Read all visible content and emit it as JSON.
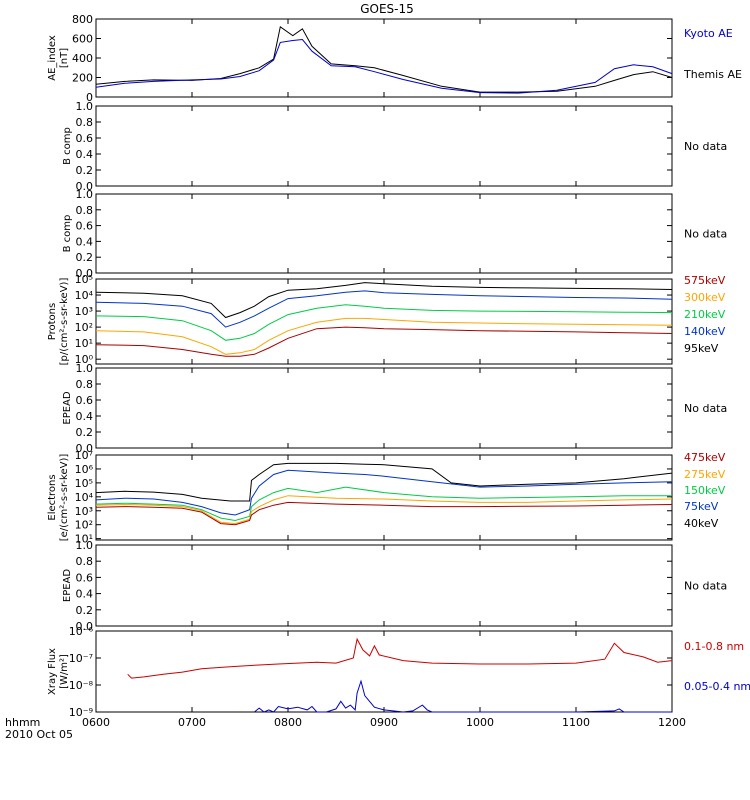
{
  "title": "GOES-15",
  "footer": {
    "time_label": "hhmm",
    "date_label": "2010 Oct 05"
  },
  "x_ticks": [
    "0600",
    "0700",
    "0800",
    "0900",
    "1000",
    "1100",
    "1200"
  ],
  "chart_data": [
    {
      "id": "ae",
      "type": "line",
      "ylabel": [
        "AE_index",
        "[nT]"
      ],
      "xlim": [
        6,
        12
      ],
      "ylim": [
        0,
        800
      ],
      "y_ticks": [
        "0",
        "200",
        "400",
        "600",
        "800"
      ],
      "legend": [
        {
          "text": "Kyoto AE",
          "color": "#0000cc"
        },
        {
          "text": "Themis AE",
          "color": "#000000"
        }
      ],
      "series": [
        {
          "name": "Themis AE",
          "color": "#000000",
          "x": [
            6.0,
            6.3,
            6.6,
            7.0,
            7.3,
            7.5,
            7.7,
            7.85,
            7.92,
            8.05,
            8.15,
            8.25,
            8.45,
            8.7,
            8.9,
            9.2,
            9.6,
            10.0,
            10.4,
            10.8,
            11.2,
            11.4,
            11.6,
            11.8,
            12.0
          ],
          "y": [
            130,
            160,
            175,
            170,
            190,
            240,
            300,
            390,
            720,
            630,
            700,
            520,
            340,
            320,
            300,
            220,
            110,
            50,
            50,
            60,
            110,
            170,
            230,
            260,
            200
          ]
        },
        {
          "name": "Kyoto AE",
          "color": "#0000cc",
          "x": [
            6.0,
            6.3,
            6.6,
            7.0,
            7.3,
            7.5,
            7.7,
            7.85,
            7.92,
            8.05,
            8.15,
            8.25,
            8.45,
            8.7,
            8.9,
            9.2,
            9.6,
            10.0,
            10.4,
            10.8,
            11.2,
            11.4,
            11.6,
            11.8,
            12.0
          ],
          "y": [
            100,
            140,
            160,
            175,
            185,
            210,
            270,
            380,
            560,
            580,
            590,
            470,
            320,
            310,
            260,
            180,
            90,
            45,
            40,
            70,
            150,
            290,
            330,
            310,
            240
          ]
        }
      ]
    },
    {
      "id": "b1",
      "type": "line",
      "ylabel": [
        "B comp"
      ],
      "ylim": [
        0,
        1
      ],
      "y_ticks": [
        "0.0",
        "0.2",
        "0.4",
        "0.6",
        "0.8",
        "1.0"
      ],
      "note": "No data",
      "series": []
    },
    {
      "id": "b2",
      "type": "line",
      "ylabel": [
        "B comp"
      ],
      "ylim": [
        0,
        1
      ],
      "y_ticks": [
        "0.0",
        "0.2",
        "0.4",
        "0.6",
        "0.8",
        "1.0"
      ],
      "note": "No data",
      "series": []
    },
    {
      "id": "protons",
      "type": "line",
      "log": true,
      "ylabel": [
        "Protons",
        "[p/(cm²-s-sr-keV)]"
      ],
      "ylim": [
        0.5,
        100000
      ],
      "y_ticks": [
        "10⁰",
        "10¹",
        "10²",
        "10³",
        "10⁴",
        "10⁵"
      ],
      "legend": [
        {
          "text": "575keV",
          "color": "#aa0000"
        },
        {
          "text": "300keV",
          "color": "#ffa500"
        },
        {
          "text": "210keV",
          "color": "#00cc44"
        },
        {
          "text": "140keV",
          "color": "#0033cc"
        },
        {
          "text": "95keV",
          "color": "#000000"
        }
      ],
      "series": [
        {
          "name": "95keV",
          "color": "#000000",
          "x": [
            6.0,
            6.5,
            6.9,
            7.2,
            7.35,
            7.5,
            7.65,
            7.8,
            8.0,
            8.3,
            8.6,
            8.8,
            9.0,
            9.5,
            10.0,
            10.5,
            11.0,
            11.5,
            12.0
          ],
          "y": [
            15000,
            13000,
            9000,
            3000,
            400,
            800,
            2000,
            8000,
            20000,
            25000,
            40000,
            60000,
            50000,
            35000,
            30000,
            28000,
            26000,
            25000,
            22000
          ]
        },
        {
          "name": "140keV",
          "color": "#0033cc",
          "x": [
            6.0,
            6.5,
            6.9,
            7.2,
            7.35,
            7.5,
            7.65,
            7.8,
            8.0,
            8.3,
            8.6,
            8.8,
            9.0,
            9.5,
            10.0,
            10.5,
            11.0,
            11.5,
            12.0
          ],
          "y": [
            3500,
            3000,
            2000,
            700,
            100,
            200,
            500,
            1500,
            6000,
            9000,
            15000,
            18000,
            14000,
            11000,
            9000,
            8000,
            7000,
            6500,
            5500
          ]
        },
        {
          "name": "210keV",
          "color": "#00cc44",
          "x": [
            6.0,
            6.5,
            6.9,
            7.2,
            7.35,
            7.5,
            7.65,
            7.8,
            8.0,
            8.3,
            8.6,
            8.8,
            9.0,
            9.5,
            10.0,
            10.5,
            11.0,
            11.5,
            12.0
          ],
          "y": [
            500,
            450,
            250,
            60,
            15,
            20,
            40,
            150,
            600,
            1500,
            2500,
            2000,
            1500,
            1100,
            1000,
            950,
            900,
            850,
            800
          ]
        },
        {
          "name": "300keV",
          "color": "#ffa500",
          "x": [
            6.0,
            6.5,
            6.9,
            7.2,
            7.35,
            7.5,
            7.65,
            7.8,
            8.0,
            8.3,
            8.6,
            8.8,
            9.0,
            9.5,
            10.0,
            10.5,
            11.0,
            11.5,
            12.0
          ],
          "y": [
            60,
            50,
            25,
            6,
            2,
            2.5,
            4,
            15,
            60,
            200,
            350,
            350,
            300,
            200,
            180,
            160,
            150,
            140,
            130
          ]
        },
        {
          "name": "575keV",
          "color": "#aa0000",
          "x": [
            6.0,
            6.5,
            6.9,
            7.2,
            7.35,
            7.5,
            7.65,
            7.8,
            8.0,
            8.3,
            8.6,
            8.8,
            9.0,
            9.5,
            10.0,
            10.5,
            11.0,
            11.5,
            12.0
          ],
          "y": [
            8,
            7,
            4,
            2,
            1.5,
            1.5,
            2,
            5,
            20,
            80,
            100,
            90,
            80,
            70,
            60,
            55,
            50,
            45,
            40
          ]
        }
      ]
    },
    {
      "id": "epead1",
      "type": "line",
      "ylabel": [
        "EPEAD"
      ],
      "ylim": [
        0,
        1
      ],
      "y_ticks": [
        "0.0",
        "0.2",
        "0.4",
        "0.6",
        "0.8",
        "1.0"
      ],
      "note": "No data",
      "series": []
    },
    {
      "id": "electrons",
      "type": "line",
      "log": true,
      "ylabel": [
        "Electrons",
        "[e/(cm²-s-sr-keV)]"
      ],
      "ylim": [
        8,
        10000000
      ],
      "y_ticks": [
        "10¹",
        "10²",
        "10³",
        "10⁴",
        "10⁵",
        "10⁶",
        "10⁷"
      ],
      "legend": [
        {
          "text": "475keV",
          "color": "#aa0000"
        },
        {
          "text": "275keV",
          "color": "#ffa500"
        },
        {
          "text": "150keV",
          "color": "#00cc44"
        },
        {
          "text": "75keV",
          "color": "#0033cc"
        },
        {
          "text": "40keV",
          "color": "#000000"
        }
      ],
      "series": [
        {
          "name": "40keV",
          "color": "#000000",
          "x": [
            6.0,
            6.3,
            6.6,
            6.9,
            7.1,
            7.4,
            7.6,
            7.62,
            7.7,
            7.85,
            8.0,
            8.5,
            8.8,
            9.0,
            9.5,
            9.7,
            10.0,
            10.5,
            11.0,
            11.5,
            12.0
          ],
          "y": [
            20000,
            25000,
            22000,
            15000,
            8000,
            5000,
            5000,
            150000,
            400000,
            2000000,
            2500000,
            2500000,
            2200000,
            2000000,
            1000000,
            100000,
            60000,
            80000,
            100000,
            200000,
            500000
          ]
        },
        {
          "name": "75keV",
          "color": "#0033cc",
          "x": [
            6.0,
            6.3,
            6.6,
            6.9,
            7.1,
            7.3,
            7.45,
            7.6,
            7.62,
            7.7,
            7.85,
            8.0,
            8.5,
            8.8,
            9.0,
            9.5,
            10.0,
            10.5,
            11.0,
            11.5,
            12.0
          ],
          "y": [
            6000,
            8000,
            7000,
            4000,
            2000,
            700,
            500,
            1200,
            8000,
            60000,
            400000,
            800000,
            500000,
            400000,
            300000,
            120000,
            50000,
            60000,
            80000,
            100000,
            120000
          ]
        },
        {
          "name": "150keV",
          "color": "#00cc44",
          "x": [
            6.0,
            6.3,
            6.6,
            6.9,
            7.1,
            7.3,
            7.45,
            7.6,
            7.62,
            7.7,
            7.85,
            8.0,
            8.3,
            8.6,
            9.0,
            9.5,
            10.0,
            10.5,
            11.0,
            11.5,
            12.0
          ],
          "y": [
            3000,
            3500,
            3000,
            2500,
            1200,
            300,
            200,
            400,
            2000,
            6000,
            20000,
            40000,
            20000,
            50000,
            20000,
            10000,
            8000,
            9000,
            10000,
            12000,
            12000
          ]
        },
        {
          "name": "275keV",
          "color": "#ffa500",
          "x": [
            6.0,
            6.3,
            6.6,
            6.9,
            7.1,
            7.3,
            7.45,
            7.6,
            7.62,
            7.7,
            7.85,
            8.0,
            8.5,
            9.0,
            9.5,
            10.0,
            10.5,
            11.0,
            11.5,
            12.0
          ],
          "y": [
            2500,
            2800,
            2500,
            2000,
            1000,
            150,
            120,
            250,
            900,
            2000,
            6000,
            12000,
            8000,
            7000,
            5000,
            4000,
            4000,
            5000,
            6000,
            7000
          ]
        },
        {
          "name": "475keV",
          "color": "#aa0000",
          "x": [
            6.0,
            6.3,
            6.6,
            6.9,
            7.1,
            7.3,
            7.45,
            7.6,
            7.62,
            7.7,
            7.85,
            8.0,
            8.5,
            9.0,
            9.5,
            10.0,
            10.5,
            11.0,
            11.5,
            12.0
          ],
          "y": [
            1800,
            2000,
            1800,
            1500,
            800,
            120,
            100,
            200,
            500,
            1200,
            2500,
            4000,
            3000,
            2500,
            2000,
            2000,
            2100,
            2200,
            2500,
            2800
          ]
        }
      ]
    },
    {
      "id": "epead2",
      "type": "line",
      "ylabel": [
        "EPEAD"
      ],
      "ylim": [
        0,
        1
      ],
      "y_ticks": [
        "0.0",
        "0.2",
        "0.4",
        "0.6",
        "0.8",
        "1.0"
      ],
      "note": "No data",
      "series": []
    },
    {
      "id": "xray",
      "type": "line",
      "log": true,
      "ylabel": [
        "Xray Flux",
        "[W/m²]"
      ],
      "ylim": [
        1e-09,
        1e-06
      ],
      "y_ticks": [
        "10⁻⁹",
        "10⁻⁸",
        "10⁻⁷",
        "10⁻⁶"
      ],
      "legend": [
        {
          "text": "0.1-0.8 nm",
          "color": "#cc0000"
        },
        {
          "text": "0.05-0.4 nm",
          "color": "#0000cc"
        }
      ],
      "series": [
        {
          "name": "0.1-0.8 nm",
          "color": "#cc0000",
          "x": [
            6.33,
            6.37,
            6.5,
            6.7,
            6.9,
            7.1,
            7.3,
            7.5,
            7.7,
            7.9,
            8.1,
            8.3,
            8.5,
            8.68,
            8.72,
            8.78,
            8.85,
            8.9,
            8.95,
            9.2,
            9.5,
            10.0,
            10.5,
            11.0,
            11.3,
            11.4,
            11.5,
            11.7,
            11.85,
            12.0
          ],
          "y": [
            2.5e-08,
            1.8e-08,
            2e-08,
            2.5e-08,
            3e-08,
            4e-08,
            4.5e-08,
            5e-08,
            5.5e-08,
            6e-08,
            6.5e-08,
            7e-08,
            6.5e-08,
            1e-07,
            5e-07,
            2e-07,
            1.2e-07,
            2.8e-07,
            1.3e-07,
            8e-08,
            6.5e-08,
            6e-08,
            6e-08,
            6.5e-08,
            9e-08,
            3.5e-07,
            1.6e-07,
            1.1e-07,
            7e-08,
            8e-08
          ]
        },
        {
          "name": "0.05-0.4 nm",
          "color": "#0000cc",
          "x": [
            7.65,
            7.7,
            7.75,
            7.8,
            7.85,
            7.9,
            8.0,
            8.1,
            8.2,
            8.25,
            8.3,
            8.4,
            8.5,
            8.55,
            8.6,
            8.65,
            8.7,
            8.72,
            8.76,
            8.8,
            8.9,
            9.0,
            9.2,
            9.3,
            9.4,
            9.45,
            9.5,
            9.6,
            9.8,
            10.0,
            10.5,
            11.0,
            11.4,
            11.45,
            11.5,
            12.0
          ],
          "y": [
            1e-09,
            1.4e-09,
            1e-09,
            1.2e-09,
            1e-09,
            1.6e-09,
            1.3e-09,
            1.5e-09,
            1.2e-09,
            1.6e-09,
            1e-09,
            1e-09,
            1.3e-09,
            2.5e-09,
            1.4e-09,
            1.8e-09,
            1.2e-09,
            5e-09,
            1.4e-08,
            4e-09,
            1.5e-09,
            1.2e-09,
            1e-09,
            1.1e-09,
            1.8e-09,
            1.2e-09,
            1e-09,
            1e-09,
            1e-09,
            1e-09,
            1e-09,
            1e-09,
            1.1e-09,
            1.3e-09,
            1e-09,
            1e-09
          ]
        }
      ]
    }
  ]
}
